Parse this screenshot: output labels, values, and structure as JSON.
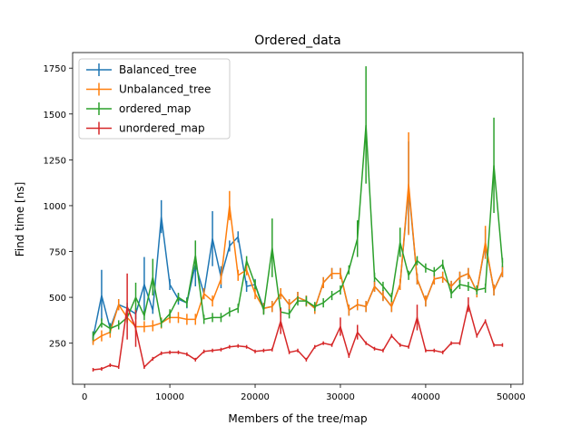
{
  "chart_data": {
    "type": "line",
    "title": "Ordered_data",
    "x_label": "Members of the tree/map",
    "y_label": "Find time [ns]",
    "x": [
      1000,
      2000,
      3000,
      4000,
      5000,
      6000,
      7000,
      8000,
      9000,
      10000,
      11000,
      12000,
      13000,
      14000,
      15000,
      16000,
      17000,
      18000,
      19000,
      20000,
      21000,
      22000,
      23000,
      24000,
      25000,
      26000,
      27000,
      28000,
      29000,
      30000,
      31000,
      32000,
      33000,
      34000,
      35000,
      36000,
      37000,
      38000,
      39000,
      40000,
      41000,
      42000,
      43000,
      44000,
      45000,
      46000,
      47000,
      48000,
      49000
    ],
    "xlim": [
      -1400,
      51400
    ],
    "xticks": [
      0,
      10000,
      20000,
      30000,
      40000,
      50000
    ],
    "ylim": [
      26,
      1835
    ],
    "yticks": [
      250,
      500,
      750,
      1000,
      1250,
      1500,
      1750
    ],
    "legend": "upper left",
    "series": [
      {
        "name": "Balanced_tree",
        "color": "#1f77b4",
        "values": [
          280,
          510,
          330,
          460,
          440,
          410,
          570,
          430,
          940,
          570,
          490,
          470,
          680,
          520,
          820,
          610,
          780,
          830,
          560,
          570,
          440,
          450,
          520,
          460,
          500,
          480,
          440,
          580,
          630,
          630,
          430,
          460,
          450,
          560,
          510,
          450,
          570,
          1100,
          600,
          480,
          600,
          610,
          560,
          610,
          630,
          530,
          790,
          540,
          640
        ],
        "errors": [
          30,
          140,
          30,
          30,
          30,
          30,
          150,
          20,
          90,
          30,
          30,
          30,
          120,
          30,
          150,
          60,
          30,
          30,
          30,
          30,
          30,
          30,
          30,
          30,
          30,
          30,
          30,
          30,
          30,
          30,
          30,
          30,
          30,
          30,
          30,
          30,
          30,
          250,
          30,
          30,
          30,
          30,
          30,
          30,
          30,
          30,
          80,
          30,
          30
        ]
      },
      {
        "name": "Unbalanced_tree",
        "color": "#ff7f0e",
        "values": [
          260,
          290,
          310,
          460,
          390,
          340,
          340,
          345,
          360,
          390,
          390,
          380,
          380,
          520,
          480,
          600,
          1000,
          620,
          650,
          520,
          440,
          450,
          520,
          460,
          500,
          480,
          440,
          580,
          630,
          630,
          430,
          460,
          450,
          560,
          510,
          450,
          570,
          1120,
          600,
          480,
          600,
          610,
          560,
          610,
          630,
          530,
          800,
          540,
          640
        ],
        "errors": [
          20,
          30,
          30,
          30,
          30,
          30,
          30,
          30,
          30,
          30,
          30,
          30,
          30,
          30,
          30,
          30,
          80,
          30,
          30,
          30,
          30,
          30,
          30,
          30,
          30,
          30,
          30,
          30,
          30,
          30,
          30,
          30,
          30,
          30,
          30,
          30,
          30,
          280,
          30,
          30,
          30,
          30,
          30,
          30,
          30,
          30,
          90,
          30,
          30
        ]
      },
      {
        "name": "ordered_map",
        "color": "#2ca02c",
        "values": [
          290,
          360,
          330,
          350,
          390,
          500,
          400,
          610,
          360,
          410,
          500,
          470,
          730,
          380,
          390,
          390,
          420,
          440,
          700,
          570,
          430,
          770,
          420,
          410,
          480,
          480,
          450,
          470,
          510,
          540,
          650,
          820,
          1440,
          610,
          560,
          500,
          800,
          620,
          700,
          660,
          640,
          680,
          520,
          570,
          560,
          540,
          550,
          1220,
          690
        ],
        "errors": [
          25,
          25,
          25,
          25,
          25,
          80,
          25,
          100,
          25,
          25,
          25,
          25,
          80,
          25,
          25,
          25,
          25,
          25,
          25,
          25,
          25,
          160,
          25,
          25,
          25,
          25,
          25,
          25,
          25,
          25,
          25,
          100,
          320,
          25,
          25,
          25,
          80,
          25,
          25,
          25,
          25,
          25,
          25,
          25,
          25,
          25,
          25,
          260,
          25
        ]
      },
      {
        "name": "unordered_map",
        "color": "#d62728",
        "values": [
          105,
          110,
          130,
          120,
          450,
          330,
          120,
          165,
          195,
          200,
          200,
          190,
          160,
          205,
          210,
          215,
          230,
          235,
          230,
          205,
          210,
          215,
          370,
          200,
          210,
          160,
          230,
          250,
          240,
          340,
          180,
          310,
          250,
          220,
          210,
          290,
          240,
          230,
          390,
          210,
          210,
          200,
          250,
          250,
          460,
          290,
          370,
          240,
          240
        ],
        "errors": [
          10,
          10,
          10,
          10,
          180,
          100,
          10,
          10,
          10,
          10,
          10,
          10,
          10,
          10,
          10,
          10,
          10,
          10,
          10,
          10,
          10,
          10,
          70,
          10,
          10,
          10,
          10,
          10,
          10,
          50,
          10,
          40,
          10,
          10,
          10,
          10,
          10,
          10,
          70,
          10,
          10,
          10,
          10,
          10,
          40,
          10,
          10,
          10,
          10
        ]
      }
    ]
  }
}
